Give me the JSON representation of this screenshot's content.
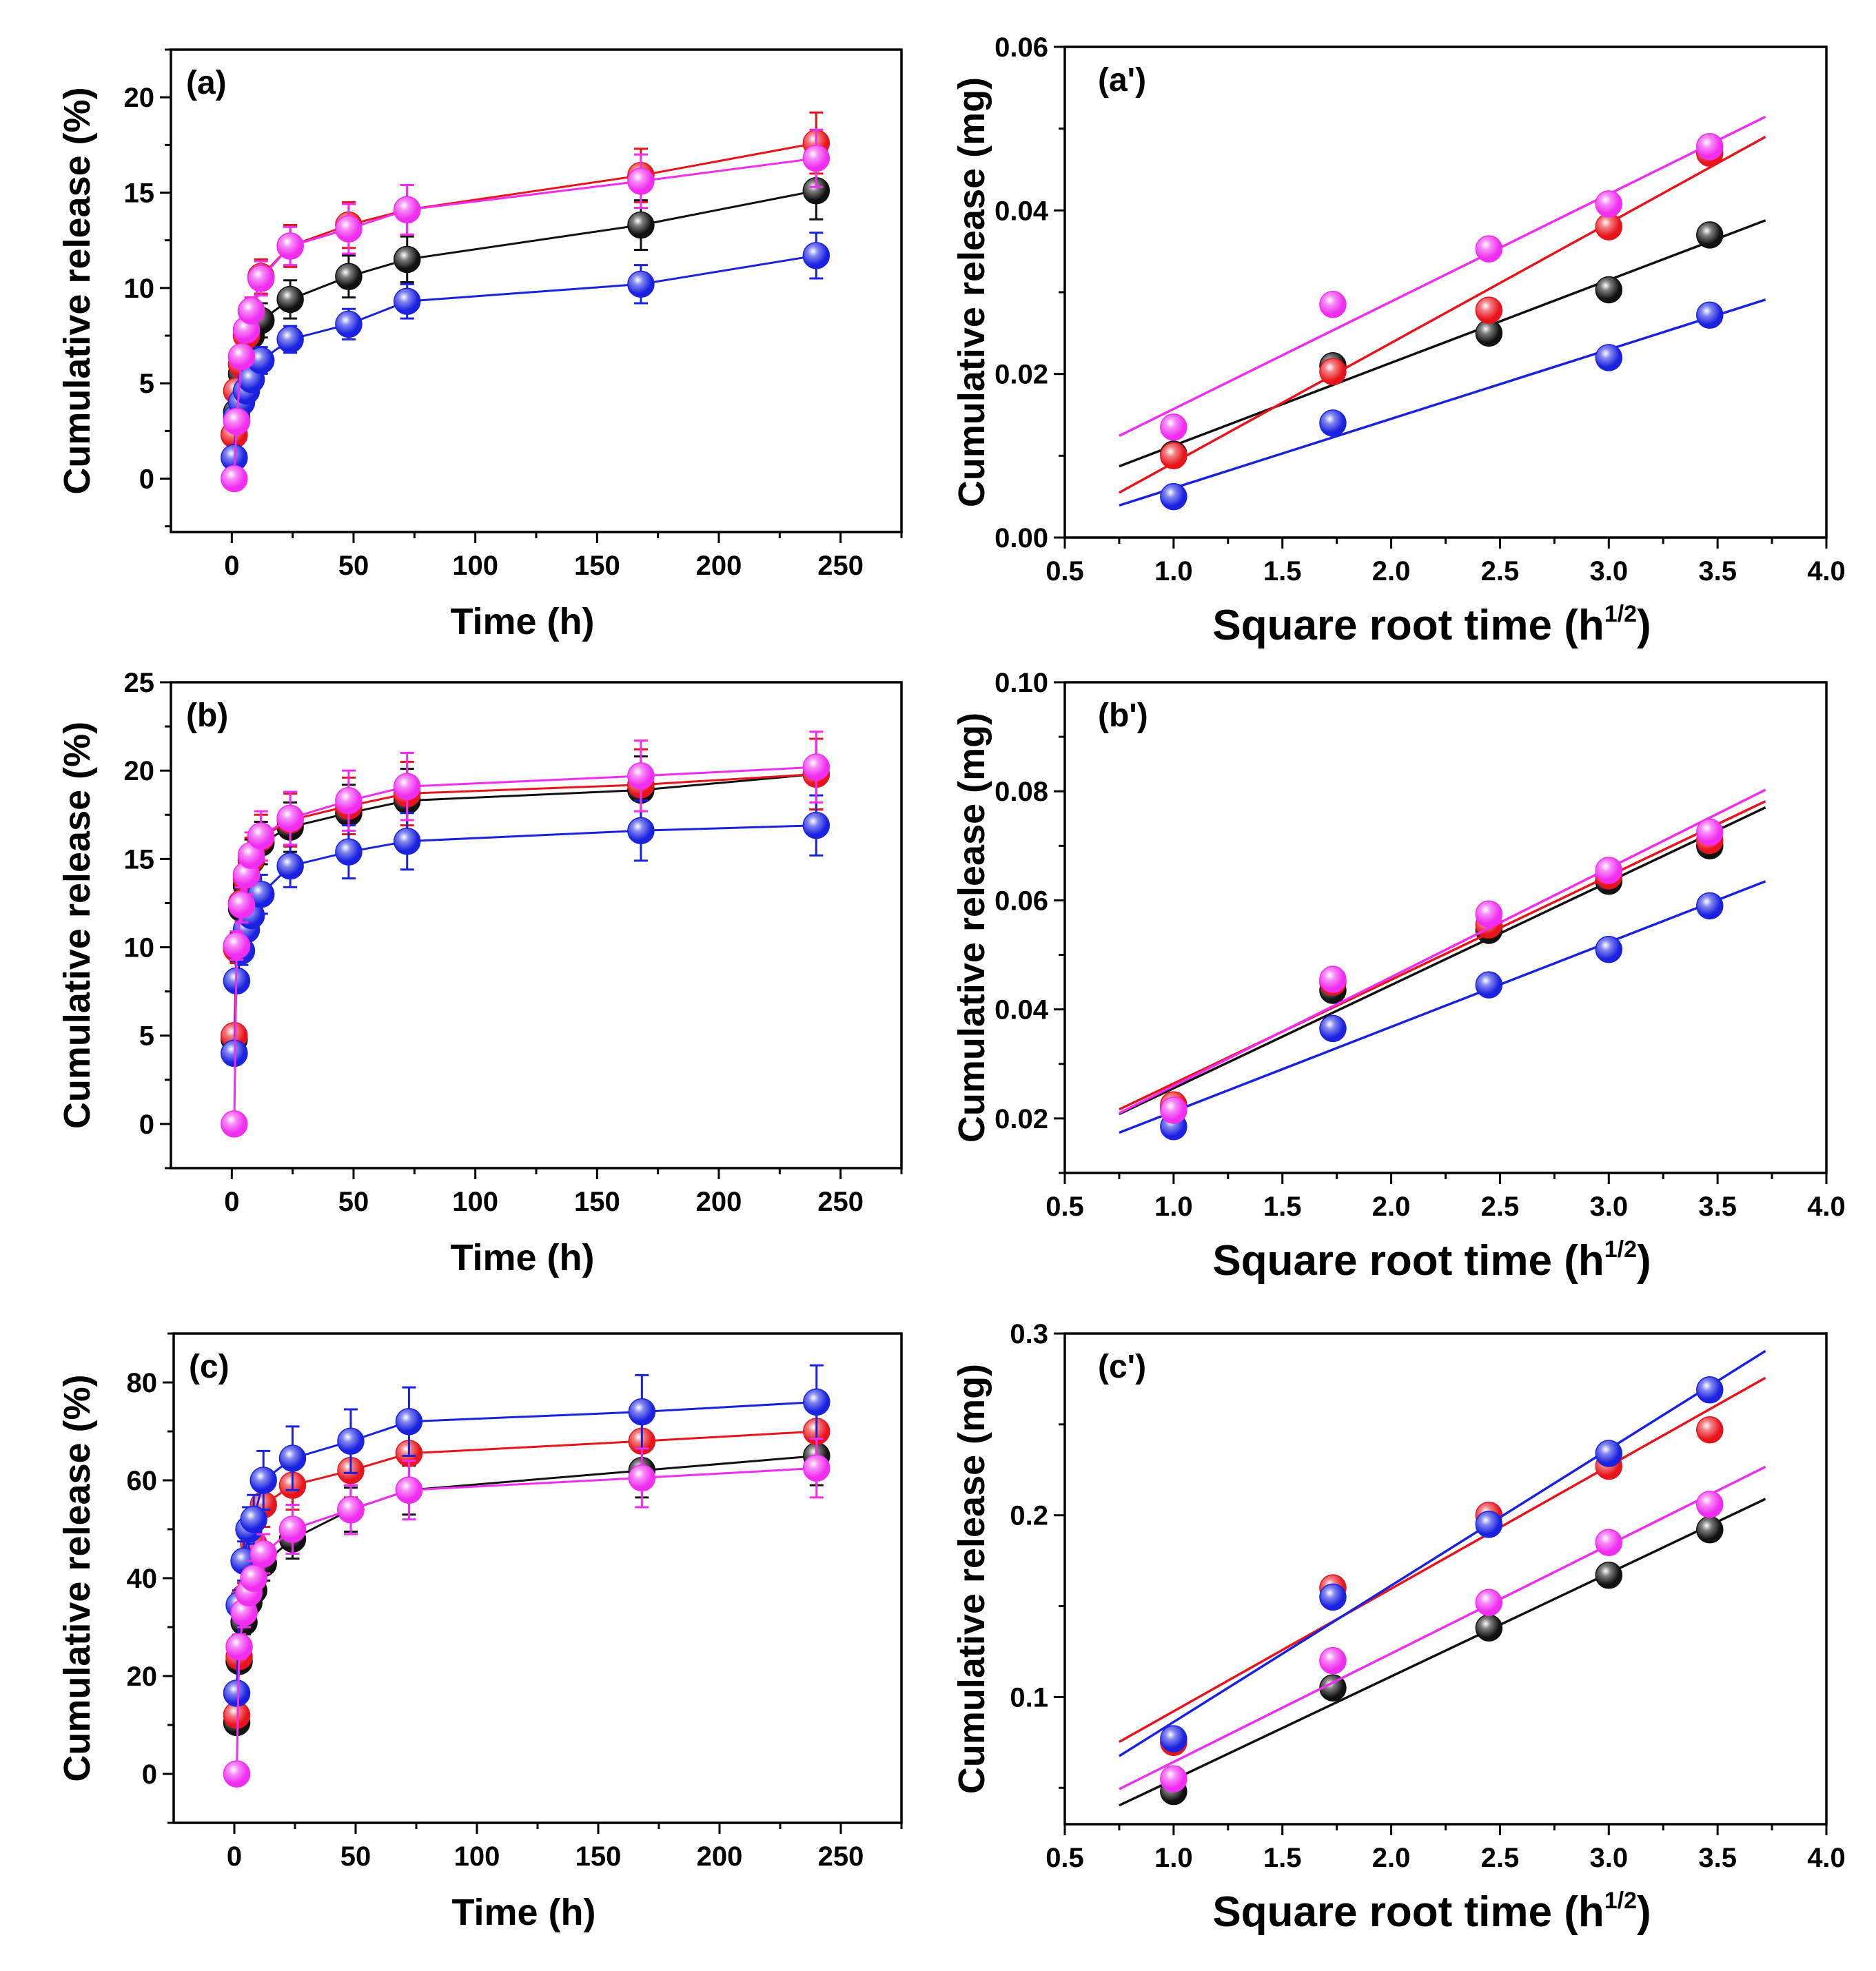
{
  "colors": {
    "black": "#111111",
    "red": "#e8141c",
    "blue": "#1a22e0",
    "magenta": "#f02df0"
  },
  "chart_data": [
    {
      "id": "a",
      "type": "scatter",
      "panel_label": "(a)",
      "xlabel": "Time (h)",
      "ylabel": "Cumulative release (%)",
      "xlim": [
        -25,
        275
      ],
      "ylim": [
        -2.8,
        22.5
      ],
      "xticks": [
        0,
        50,
        100,
        150,
        200,
        250
      ],
      "xtick_labels": [
        "0",
        "50",
        "100",
        "150",
        "200",
        "250"
      ],
      "yticks": [
        0,
        5,
        10,
        15,
        20
      ],
      "ytick_labels": [
        "0",
        "5",
        "10",
        "15",
        "20"
      ],
      "x": [
        1,
        2,
        4,
        6,
        8,
        12,
        24,
        48,
        72,
        168,
        240
      ],
      "series": [
        {
          "name": "black",
          "color_key": "black",
          "values": [
            2.3,
            3.5,
            5.5,
            6.5,
            7.5,
            8.3,
            9.4,
            10.6,
            11.5,
            13.3,
            15.1
          ],
          "errors": [
            0.4,
            0.4,
            0.5,
            0.6,
            0.7,
            0.9,
            1.0,
            1.1,
            1.2,
            1.3,
            1.5
          ]
        },
        {
          "name": "red",
          "color_key": "red",
          "values": [
            2.3,
            4.6,
            6.0,
            7.5,
            8.8,
            10.6,
            12.2,
            13.3,
            14.1,
            15.9,
            17.6
          ],
          "errors": [
            0.3,
            0.4,
            0.5,
            0.6,
            0.7,
            0.9,
            1.1,
            1.2,
            1.3,
            1.4,
            1.6
          ]
        },
        {
          "name": "blue",
          "color_key": "blue",
          "values": [
            1.1,
            3.2,
            4.0,
            4.6,
            5.2,
            6.2,
            7.3,
            8.1,
            9.3,
            10.2,
            11.7
          ],
          "errors": [
            0.3,
            0.4,
            0.5,
            0.5,
            0.6,
            0.7,
            0.7,
            0.8,
            0.9,
            1.0,
            1.2
          ]
        },
        {
          "name": "magenta",
          "color_key": "magenta",
          "values": [
            0.0,
            3.0,
            6.4,
            7.8,
            8.8,
            10.5,
            12.2,
            13.1,
            14.1,
            15.6,
            16.8
          ],
          "errors": [
            0.2,
            0.4,
            0.5,
            0.6,
            0.7,
            0.9,
            1.0,
            1.3,
            1.3,
            1.4,
            1.5
          ]
        }
      ]
    },
    {
      "id": "a-prime",
      "type": "scatter",
      "fit": "linear",
      "panel_label": "(a')",
      "xlabel": "Square root time (h",
      "xlabel_sup": "1/2",
      "xlabel_close": ")",
      "ylabel": "Cumulative release (mg)",
      "xlim": [
        0.5,
        4.0
      ],
      "ylim": [
        0.0,
        0.06
      ],
      "fit_range": [
        0.75,
        3.72
      ],
      "xticks": [
        0.5,
        1.0,
        1.5,
        2.0,
        2.5,
        3.0,
        3.5,
        4.0
      ],
      "xtick_labels": [
        "0.5",
        "1.0",
        "1.5",
        "2.0",
        "2.5",
        "3.0",
        "3.5",
        "4.0"
      ],
      "yticks": [
        0.0,
        0.02,
        0.04,
        0.06
      ],
      "ytick_labels": [
        "0.00",
        "0.02",
        "0.04",
        "0.06"
      ],
      "x": [
        1.0,
        1.732,
        2.449,
        3.0,
        3.464
      ],
      "series": [
        {
          "name": "black",
          "color_key": "black",
          "values": [
            0.0102,
            0.021,
            0.025,
            0.0303,
            0.037
          ]
        },
        {
          "name": "red",
          "color_key": "red",
          "values": [
            0.01,
            0.0203,
            0.0278,
            0.038,
            0.047
          ]
        },
        {
          "name": "blue",
          "color_key": "blue",
          "values": [
            0.005,
            0.014,
            null,
            0.022,
            0.0272
          ]
        },
        {
          "name": "magenta",
          "color_key": "magenta",
          "values": [
            0.0135,
            0.0285,
            0.0353,
            0.0408,
            0.0478
          ]
        }
      ]
    },
    {
      "id": "b",
      "type": "scatter",
      "panel_label": "(b)",
      "xlabel": "Time (h)",
      "ylabel": "Cumulative release (%)",
      "xlim": [
        -25,
        275
      ],
      "ylim": [
        -2.5,
        25
      ],
      "xticks": [
        0,
        50,
        100,
        150,
        200,
        250
      ],
      "xtick_labels": [
        "0",
        "50",
        "100",
        "150",
        "200",
        "250"
      ],
      "yticks": [
        0,
        5,
        10,
        15,
        20,
        25
      ],
      "ytick_labels": [
        "0",
        "5",
        "10",
        "15",
        "20",
        "25"
      ],
      "x": [
        1,
        2,
        4,
        6,
        8,
        12,
        24,
        48,
        72,
        168,
        240
      ],
      "series": [
        {
          "name": "black",
          "color_key": "black",
          "values": [
            4.8,
            10.0,
            12.2,
            13.5,
            14.9,
            15.9,
            16.8,
            17.6,
            18.3,
            18.9,
            19.8
          ],
          "errors": [
            0.5,
            0.8,
            1.0,
            1.1,
            1.2,
            1.2,
            1.4,
            1.6,
            1.8,
            1.9,
            2.0
          ]
        },
        {
          "name": "red",
          "color_key": "red",
          "values": [
            5.0,
            9.9,
            12.5,
            13.9,
            15.0,
            16.2,
            17.2,
            18.0,
            18.7,
            19.2,
            19.8
          ],
          "errors": [
            0.5,
            0.8,
            1.0,
            1.1,
            1.2,
            1.3,
            1.5,
            1.6,
            1.8,
            2.0,
            2.0
          ]
        },
        {
          "name": "blue",
          "color_key": "blue",
          "values": [
            4.0,
            8.1,
            9.8,
            11.0,
            11.8,
            13.0,
            14.6,
            15.4,
            16.0,
            16.6,
            16.9
          ],
          "errors": [
            0.5,
            0.6,
            0.8,
            0.9,
            1.0,
            1.1,
            1.2,
            1.5,
            1.6,
            1.7,
            1.7
          ]
        },
        {
          "name": "magenta",
          "color_key": "magenta",
          "values": [
            0.0,
            10.1,
            12.4,
            14.1,
            15.2,
            16.3,
            17.3,
            18.3,
            19.1,
            19.7,
            20.2
          ],
          "errors": [
            0.2,
            0.8,
            1.0,
            1.1,
            1.3,
            1.4,
            1.5,
            1.7,
            1.9,
            2.0,
            2.0
          ]
        }
      ]
    },
    {
      "id": "b-prime",
      "type": "scatter",
      "fit": "linear",
      "panel_label": "(b')",
      "xlabel": "Square root time (h",
      "xlabel_sup": "1/2",
      "xlabel_close": ")",
      "ylabel": "Cumulative release (mg)",
      "xlim": [
        0.5,
        4.0
      ],
      "ylim": [
        0.01,
        0.1
      ],
      "fit_range": [
        0.75,
        3.72
      ],
      "xticks": [
        0.5,
        1.0,
        1.5,
        2.0,
        2.5,
        3.0,
        3.5,
        4.0
      ],
      "xtick_labels": [
        "0.5",
        "1.0",
        "1.5",
        "2.0",
        "2.5",
        "3.0",
        "3.5",
        "4.0"
      ],
      "yticks": [
        0.02,
        0.04,
        0.06,
        0.08,
        0.1
      ],
      "ytick_labels": [
        "0.02",
        "0.04",
        "0.06",
        "0.08",
        "0.10"
      ],
      "x": [
        1.0,
        1.732,
        2.449,
        3.0,
        3.464
      ],
      "series": [
        {
          "name": "black",
          "color_key": "black",
          "values": [
            0.022,
            0.0435,
            0.0545,
            0.0635,
            0.07
          ]
        },
        {
          "name": "red",
          "color_key": "red",
          "values": [
            0.0225,
            0.045,
            0.0555,
            0.0645,
            0.071
          ]
        },
        {
          "name": "blue",
          "color_key": "blue",
          "values": [
            0.0185,
            0.0365,
            0.0445,
            0.051,
            0.059
          ]
        },
        {
          "name": "magenta",
          "color_key": "magenta",
          "values": [
            0.0215,
            0.0455,
            0.0575,
            0.0655,
            0.0725
          ]
        }
      ]
    },
    {
      "id": "c",
      "type": "scatter",
      "panel_label": "(c)",
      "xlabel": "Time (h)",
      "ylabel": "Cumulative release (%)",
      "xlim": [
        -25,
        275
      ],
      "ylim": [
        -10,
        90
      ],
      "xticks": [
        0,
        50,
        100,
        150,
        200,
        250
      ],
      "xtick_labels": [
        "0",
        "50",
        "100",
        "150",
        "200",
        "250"
      ],
      "yticks": [
        0,
        20,
        40,
        60,
        80
      ],
      "ytick_labels": [
        "0",
        "20",
        "40",
        "60",
        "80"
      ],
      "x": [
        1,
        2,
        4,
        6,
        8,
        12,
        24,
        48,
        72,
        168,
        240
      ],
      "series": [
        {
          "name": "black",
          "color_key": "black",
          "values": [
            10.5,
            23.0,
            31.0,
            35.0,
            37.5,
            43.0,
            48.0,
            54.0,
            58.0,
            62.0,
            65.0
          ],
          "errors": [
            1.5,
            2.0,
            2.5,
            3.0,
            3.0,
            3.5,
            4.0,
            4.5,
            5.0,
            5.5,
            6.0
          ]
        },
        {
          "name": "red",
          "color_key": "red",
          "values": [
            12.0,
            24.0,
            36.0,
            44.0,
            47.0,
            55.0,
            59.0,
            62.0,
            65.5,
            68.0,
            70.0
          ],
          "errors": [
            1.5,
            2.0,
            3.0,
            3.5,
            4.0,
            4.5,
            5.0,
            5.5,
            6.0,
            6.5,
            7.0
          ]
        },
        {
          "name": "blue",
          "color_key": "blue",
          "values": [
            16.5,
            34.5,
            43.5,
            50.0,
            52.0,
            60.0,
            64.5,
            68.0,
            72.0,
            74.0,
            76.0
          ],
          "errors": [
            1.5,
            3.0,
            4.0,
            4.5,
            5.0,
            6.0,
            6.5,
            6.5,
            7.0,
            7.5,
            7.5
          ]
        },
        {
          "name": "magenta",
          "color_key": "magenta",
          "values": [
            0.0,
            26.0,
            33.0,
            37.0,
            40.0,
            45.0,
            50.0,
            54.0,
            58.0,
            60.5,
            62.5
          ],
          "errors": [
            0.5,
            2.5,
            3.0,
            3.5,
            3.5,
            4.0,
            5.0,
            5.0,
            6.0,
            6.0,
            6.0
          ]
        }
      ]
    },
    {
      "id": "c-prime",
      "type": "scatter",
      "fit": "linear",
      "panel_label": "(c')",
      "xlabel": "Square root time (h",
      "xlabel_sup": "1/2",
      "xlabel_close": ")",
      "ylabel": "Cumulative release (mg)",
      "xlim": [
        0.5,
        4.0
      ],
      "ylim": [
        0.03,
        0.3
      ],
      "fit_range": [
        0.75,
        3.72
      ],
      "xticks": [
        0.5,
        1.0,
        1.5,
        2.0,
        2.5,
        3.0,
        3.5,
        4.0
      ],
      "xtick_labels": [
        "0.5",
        "1.0",
        "1.5",
        "2.0",
        "2.5",
        "3.0",
        "3.5",
        "4.0"
      ],
      "yticks": [
        0.1,
        0.2,
        0.3
      ],
      "ytick_labels": [
        "0.1",
        "0.2",
        "0.3"
      ],
      "x": [
        1.0,
        1.732,
        2.449,
        3.0,
        3.464
      ],
      "series": [
        {
          "name": "black",
          "color_key": "black",
          "values": [
            0.048,
            0.105,
            0.138,
            0.167,
            0.192
          ]
        },
        {
          "name": "red",
          "color_key": "red",
          "values": [
            0.075,
            0.16,
            0.2,
            0.227,
            0.247
          ]
        },
        {
          "name": "blue",
          "color_key": "blue",
          "values": [
            0.077,
            0.155,
            0.195,
            0.234,
            0.269
          ]
        },
        {
          "name": "magenta",
          "color_key": "magenta",
          "values": [
            0.055,
            0.12,
            0.152,
            0.185,
            0.206
          ]
        }
      ]
    }
  ]
}
